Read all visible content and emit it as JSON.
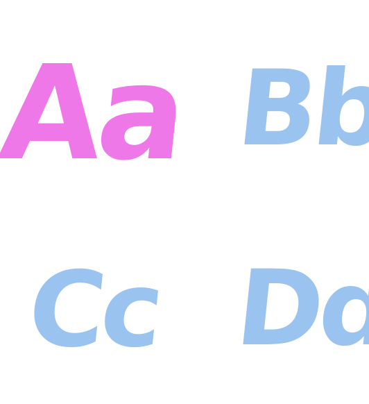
{
  "colors": {
    "pink": "#ee78e8",
    "blue": "#9bc3f0"
  },
  "letters": [
    {
      "text": "Aa",
      "color": "#ee78e8"
    },
    {
      "text": "Bb",
      "color": "#9bc3f0"
    },
    {
      "text": "Cc",
      "color": "#9bc3f0"
    },
    {
      "text": "Dd",
      "color": "#9bc3f0"
    }
  ]
}
